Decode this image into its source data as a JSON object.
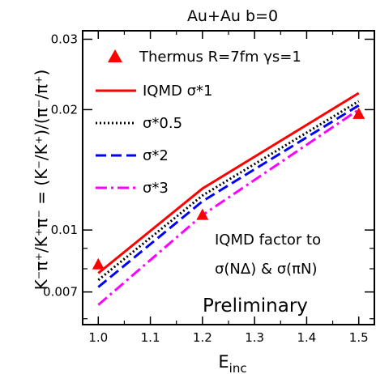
{
  "chart_data": {
    "type": "line",
    "title": "Au+Au  b=0",
    "xlabel": "E",
    "xlabel_sub": "inc",
    "ylabel": "K⁻π⁺/K⁺π⁻ = (K⁻/K⁺)/(π⁻/π⁺)",
    "xlim": [
      0.97,
      1.53
    ],
    "ylim": [
      0.0058,
      0.0315
    ],
    "y_scale": "log",
    "grid": false,
    "legend_placement": "top-left",
    "x_ticks": [
      1.0,
      1.1,
      1.2,
      1.3,
      1.4,
      1.5
    ],
    "x_tick_labels": [
      "1.0",
      "1.1",
      "1.2",
      "1.3",
      "1.4",
      "1.5"
    ],
    "y_ticks": [
      0.007,
      0.01,
      0.02,
      0.03
    ],
    "y_tick_labels": [
      "0.007",
      "0.01",
      "0.02",
      "0.03"
    ],
    "series": [
      {
        "name": "Thermus  R=7fm  γs=1",
        "kind": "marker",
        "color": "#ff0000",
        "x": [
          1.0,
          1.2,
          1.5
        ],
        "y": [
          0.0082,
          0.0109,
          0.0195
        ]
      },
      {
        "name": "IQMD  σ*1",
        "kind": "line",
        "dash": "solid",
        "color": "#ff0000",
        "x": [
          1.0,
          1.2,
          1.5
        ],
        "y": [
          0.0078,
          0.0127,
          0.022
        ]
      },
      {
        "name": "σ*0.5",
        "kind": "line",
        "dash": "dotted",
        "color": "#000000",
        "x": [
          1.0,
          1.2,
          1.5
        ],
        "y": [
          0.0075,
          0.0122,
          0.021
        ]
      },
      {
        "name": "σ*2",
        "kind": "line",
        "dash": "dashed",
        "color": "#0000ff",
        "x": [
          1.0,
          1.2,
          1.5
        ],
        "y": [
          0.0072,
          0.0118,
          0.0205
        ]
      },
      {
        "name": "σ*3",
        "kind": "line",
        "dash": "dashdot",
        "color": "#ff00ff",
        "x": [
          1.0,
          1.2,
          1.5
        ],
        "y": [
          0.0065,
          0.0109,
          0.02
        ]
      }
    ],
    "annotations": [
      "IQMD factor to",
      "σ(NΔ)  &  σ(πN)",
      "Preliminary"
    ]
  }
}
